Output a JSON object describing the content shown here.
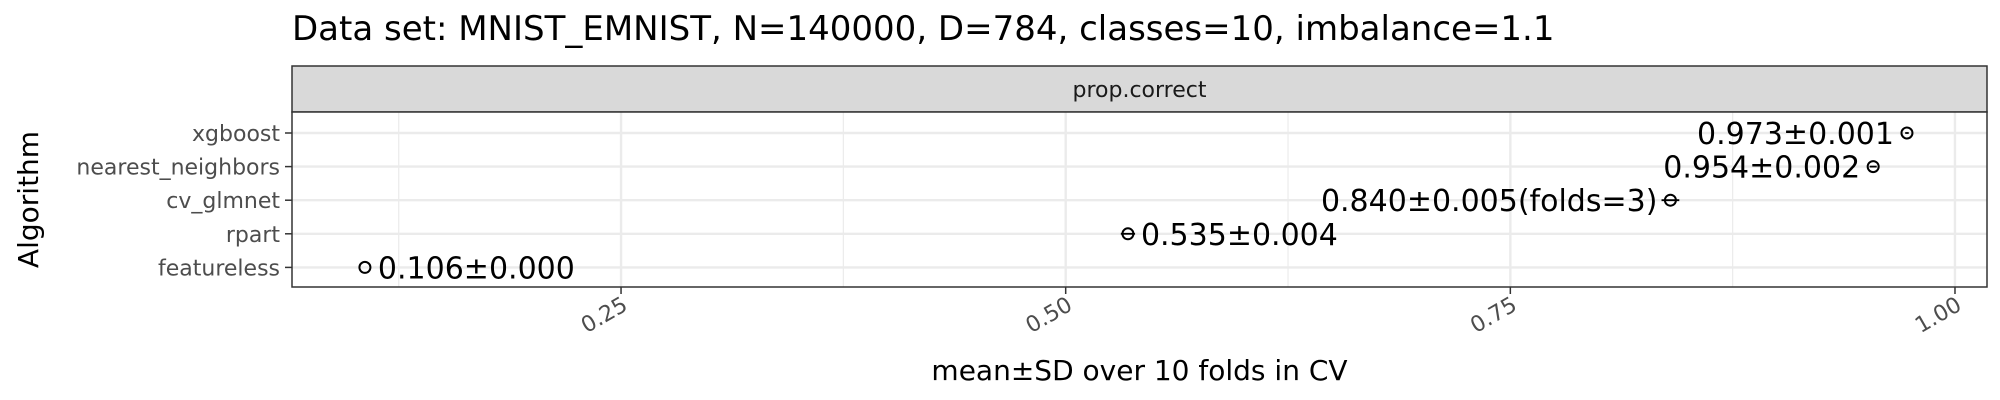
{
  "chart_data": {
    "type": "scatter",
    "title": "Data set: MNIST_EMNIST, N=140000, D=784, classes=10, imbalance=1.1",
    "facet": "prop.correct",
    "xlabel": "mean±SD over 10 folds in CV",
    "ylabel": "Algorithm",
    "xlim": [
      0.065,
      1.018
    ],
    "x_ticks": [
      0.25,
      0.5,
      0.75,
      1.0
    ],
    "x_tick_labels": [
      "0.25",
      "0.50",
      "0.75",
      "1.00"
    ],
    "grid": true,
    "categories": [
      "xgboost",
      "nearest_neighbors",
      "cv_glmnet",
      "rpart",
      "featureless"
    ],
    "points": [
      {
        "algorithm": "xgboost",
        "mean": 0.973,
        "sd": 0.001,
        "label": "0.973±0.001",
        "label_side": "left"
      },
      {
        "algorithm": "nearest_neighbors",
        "mean": 0.954,
        "sd": 0.002,
        "label": "0.954±0.002",
        "label_side": "left"
      },
      {
        "algorithm": "cv_glmnet",
        "mean": 0.84,
        "sd": 0.005,
        "label": "0.840±0.005(folds=3)",
        "label_side": "left"
      },
      {
        "algorithm": "rpart",
        "mean": 0.535,
        "sd": 0.004,
        "label": "0.535±0.004",
        "label_side": "right"
      },
      {
        "algorithm": "featureless",
        "mean": 0.106,
        "sd": 0.0,
        "label": "0.106±0.000",
        "label_side": "right"
      }
    ]
  }
}
